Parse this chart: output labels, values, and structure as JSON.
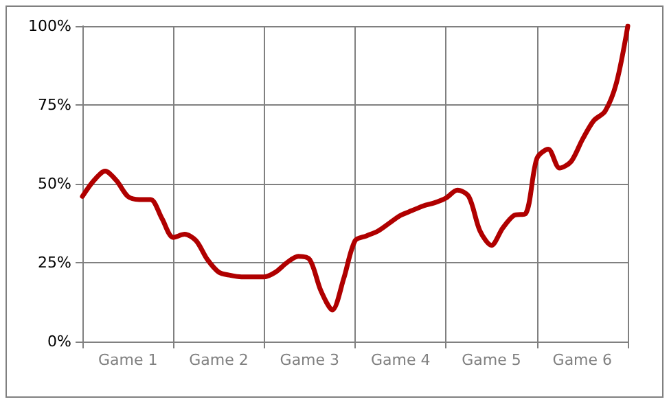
{
  "chart_data": {
    "type": "line",
    "categories": [
      null,
      null,
      null,
      null,
      "Game 1",
      null,
      null,
      null,
      null,
      null,
      null,
      null,
      "Game 2",
      null,
      null,
      null,
      null,
      null,
      null,
      null,
      "Game 3",
      null,
      null,
      null,
      null,
      null,
      null,
      null,
      "Game 4",
      null,
      null,
      null,
      null,
      null,
      null,
      null,
      "Game 5",
      null,
      null,
      null,
      null,
      null,
      null,
      null,
      "Game 6",
      null,
      null,
      null,
      null
    ],
    "series": [
      {
        "color": "#b00000",
        "values": [
          46,
          51,
          54,
          51,
          46,
          45,
          45,
          39,
          33,
          34,
          32,
          26,
          22,
          21,
          20.5,
          20.5,
          20.5,
          22,
          25,
          27,
          26,
          16,
          10,
          20,
          32,
          33.5,
          35,
          37.5,
          40,
          41.5,
          43,
          44,
          45.5,
          48,
          46,
          35,
          30.5,
          36,
          40,
          40.5,
          58,
          61,
          55,
          57,
          64,
          70,
          73,
          82,
          100
        ]
      }
    ],
    "ylim": [
      0,
      100
    ],
    "yticks": [
      {
        "value": 0,
        "label": "0%"
      },
      {
        "value": 25,
        "label": "25%"
      },
      {
        "value": 50,
        "label": "50%"
      },
      {
        "value": 75,
        "label": "75%"
      },
      {
        "value": 100,
        "label": "100%"
      }
    ],
    "grid": true,
    "marker": "none",
    "line_style": "solid"
  }
}
